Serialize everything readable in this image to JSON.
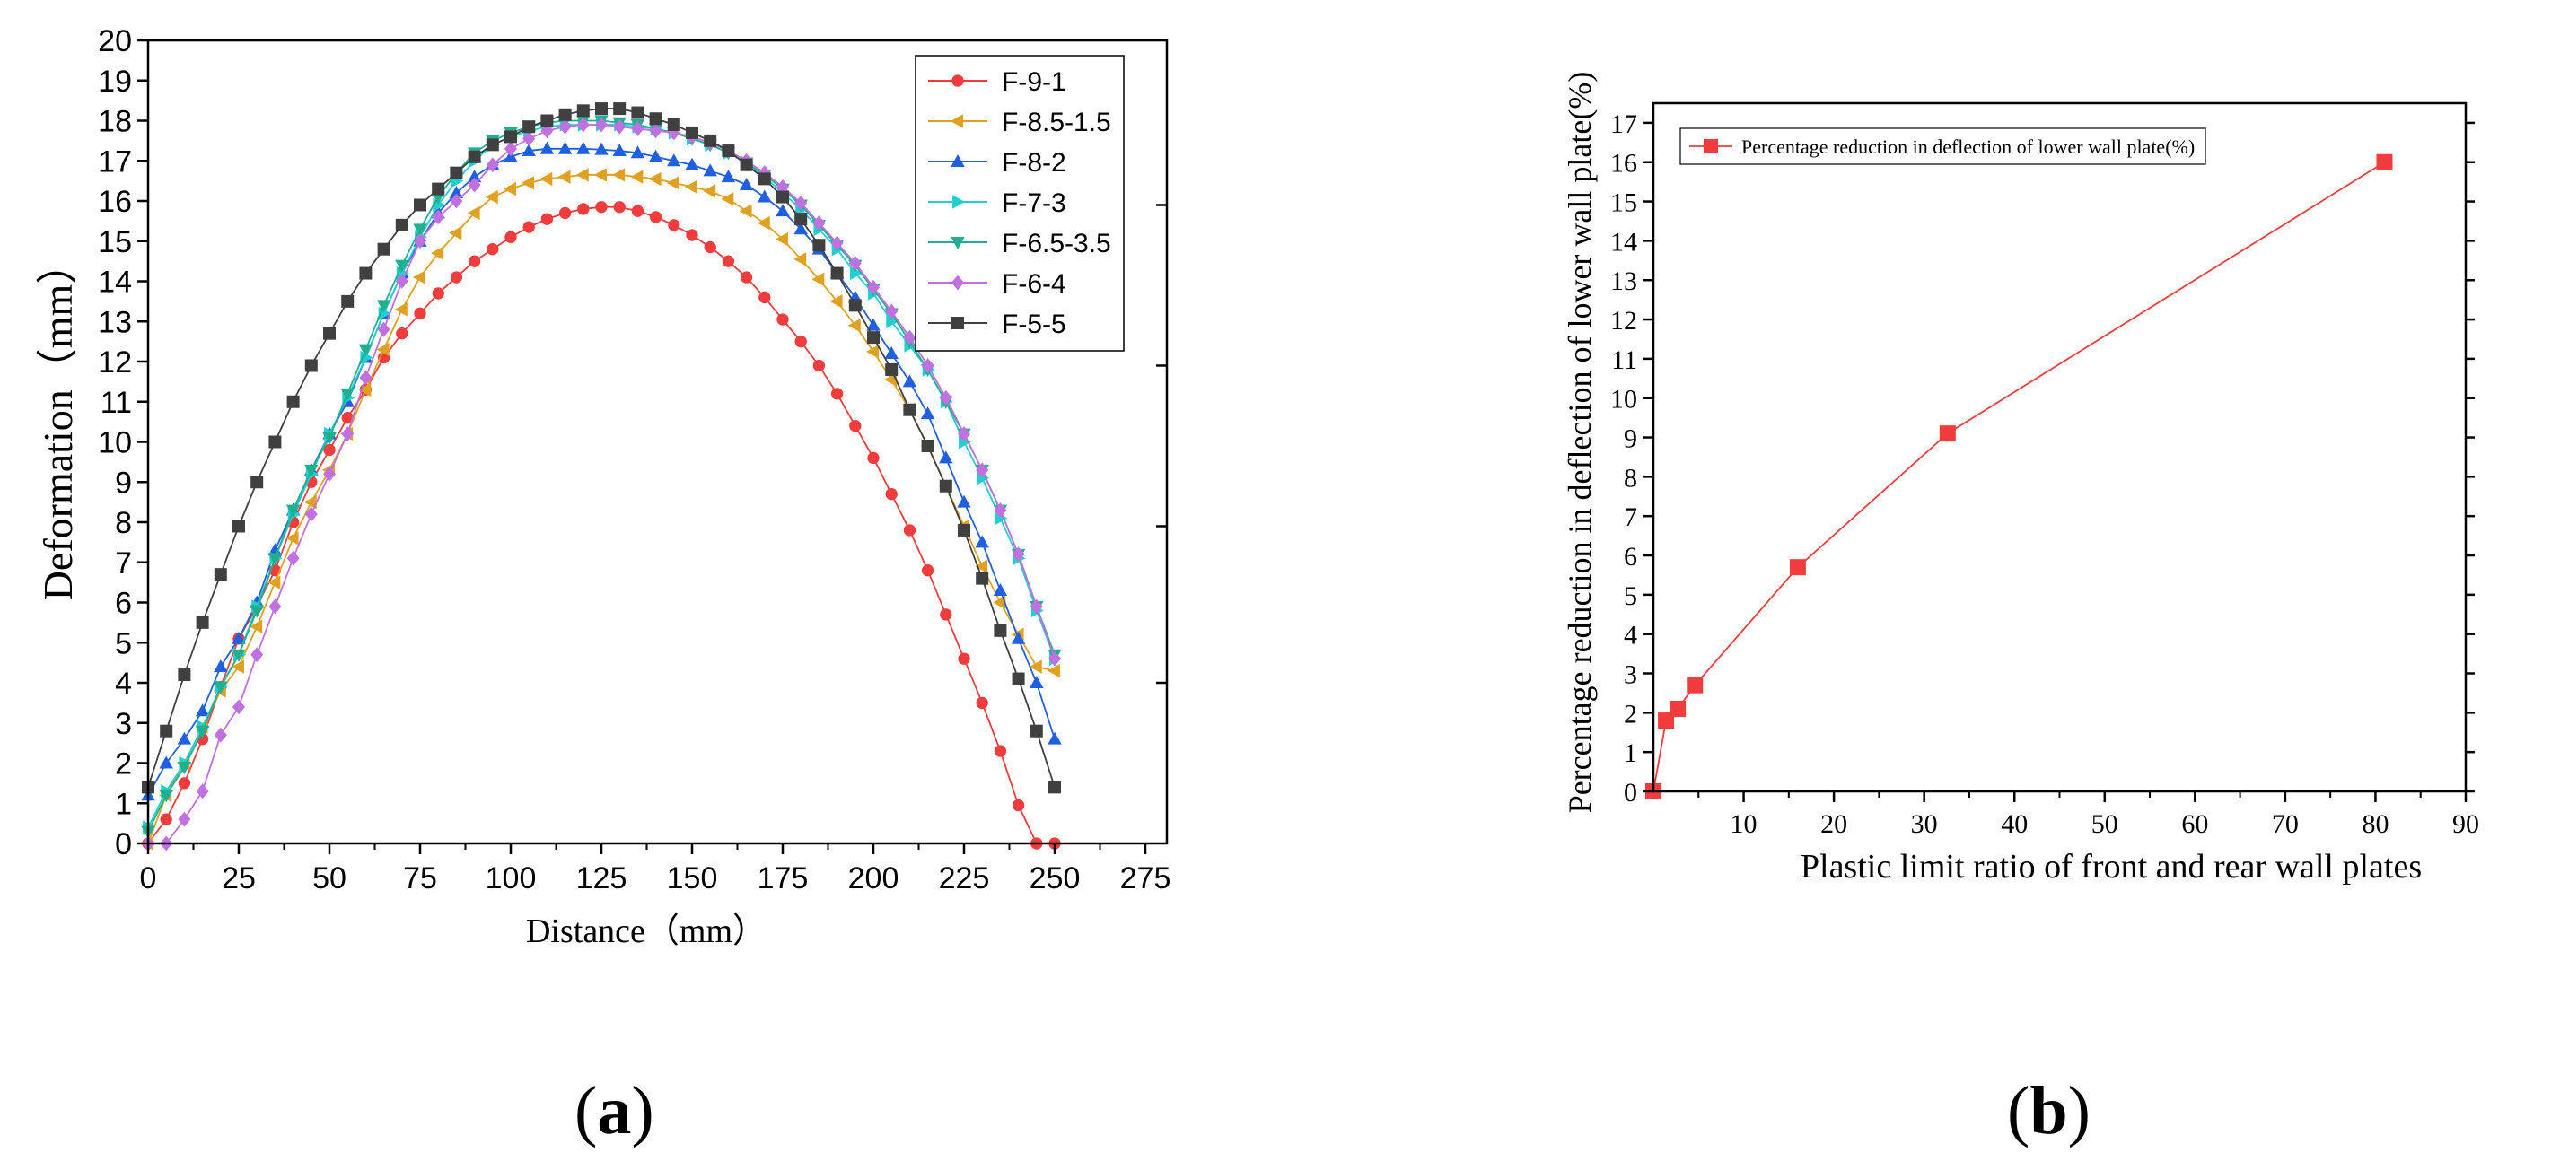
{
  "chart_data": [
    {
      "id": "a",
      "type": "line",
      "xlabel": "Distance（mm）",
      "ylabel": "Deformation（mm）",
      "xlim": [
        0,
        275
      ],
      "ylim": [
        0,
        20
      ],
      "xticks": [
        0,
        25,
        50,
        75,
        100,
        125,
        150,
        175,
        200,
        225,
        250,
        275
      ],
      "yticks": [
        0,
        1,
        2,
        3,
        4,
        5,
        6,
        7,
        8,
        9,
        10,
        11,
        12,
        13,
        14,
        15,
        16,
        17,
        18,
        19,
        20
      ],
      "legend_position": "top-right",
      "series": [
        {
          "name": "F-9-1",
          "color": "#f03c3c",
          "marker": "circle",
          "x": [
            0,
            5,
            10,
            15,
            20,
            25,
            30,
            35,
            40,
            45,
            50,
            55,
            60,
            65,
            70,
            75,
            80,
            85,
            90,
            95,
            100,
            105,
            110,
            115,
            120,
            125,
            130,
            135,
            140,
            145,
            150,
            155,
            160,
            165,
            170,
            175,
            180,
            185,
            190,
            195,
            200,
            205,
            210,
            215,
            220,
            225,
            230,
            235,
            240,
            245,
            250
          ],
          "y": [
            0,
            0.6,
            1.5,
            2.6,
            3.9,
            5.1,
            5.9,
            6.8,
            8.0,
            9.0,
            9.8,
            10.6,
            11.3,
            12.1,
            12.7,
            13.2,
            13.7,
            14.1,
            14.5,
            14.8,
            15.1,
            15.35,
            15.55,
            15.7,
            15.8,
            15.85,
            15.85,
            15.75,
            15.6,
            15.4,
            15.15,
            14.85,
            14.5,
            14.1,
            13.6,
            13.05,
            12.5,
            11.9,
            11.2,
            10.4,
            9.6,
            8.7,
            7.8,
            6.8,
            5.7,
            4.6,
            3.5,
            2.3,
            0.95,
            0,
            0
          ]
        },
        {
          "name": "F-8.5-1.5",
          "color": "#e0a020",
          "marker": "triangle-left",
          "x": [
            0,
            5,
            10,
            15,
            20,
            25,
            30,
            35,
            40,
            45,
            50,
            55,
            60,
            65,
            70,
            75,
            80,
            85,
            90,
            95,
            100,
            105,
            110,
            115,
            120,
            125,
            130,
            135,
            140,
            145,
            150,
            155,
            160,
            165,
            170,
            175,
            180,
            185,
            190,
            195,
            200,
            205,
            210,
            215,
            220,
            225,
            230,
            235,
            240,
            245,
            250
          ],
          "y": [
            0,
            1.2,
            2.0,
            2.9,
            3.8,
            4.4,
            5.4,
            6.5,
            7.6,
            8.5,
            9.3,
            10.2,
            11.3,
            12.3,
            13.3,
            14.1,
            14.7,
            15.2,
            15.7,
            16.1,
            16.3,
            16.45,
            16.55,
            16.6,
            16.65,
            16.65,
            16.65,
            16.6,
            16.55,
            16.45,
            16.35,
            16.25,
            16.05,
            15.75,
            15.45,
            15.05,
            14.55,
            14.05,
            13.5,
            12.9,
            12.25,
            11.55,
            10.8,
            9.9,
            8.9,
            7.9,
            6.9,
            6.0,
            5.2,
            4.4,
            4.3
          ]
        },
        {
          "name": "F-8-2",
          "color": "#2060e0",
          "marker": "triangle-up",
          "x": [
            0,
            5,
            10,
            15,
            20,
            25,
            30,
            35,
            40,
            45,
            50,
            55,
            60,
            65,
            70,
            75,
            80,
            85,
            90,
            95,
            100,
            105,
            110,
            115,
            120,
            125,
            130,
            135,
            140,
            145,
            150,
            155,
            160,
            165,
            170,
            175,
            180,
            185,
            190,
            195,
            200,
            205,
            210,
            215,
            220,
            225,
            230,
            235,
            240,
            245,
            250
          ],
          "y": [
            1.2,
            2.0,
            2.6,
            3.3,
            4.4,
            5.1,
            6.0,
            7.3,
            8.3,
            9.3,
            10.2,
            11.0,
            12.1,
            13.2,
            14.2,
            15.0,
            15.7,
            16.2,
            16.6,
            16.9,
            17.1,
            17.25,
            17.3,
            17.3,
            17.3,
            17.28,
            17.25,
            17.2,
            17.1,
            17.0,
            16.9,
            16.75,
            16.6,
            16.4,
            16.1,
            15.75,
            15.3,
            14.8,
            14.2,
            13.6,
            12.9,
            12.2,
            11.5,
            10.7,
            9.6,
            8.5,
            7.5,
            6.3,
            5.1,
            4.0,
            2.6
          ]
        },
        {
          "name": "F-7-3",
          "color": "#20d0d0",
          "marker": "triangle-right",
          "x": [
            0,
            5,
            10,
            15,
            20,
            25,
            30,
            35,
            40,
            45,
            50,
            55,
            60,
            65,
            70,
            75,
            80,
            85,
            90,
            95,
            100,
            105,
            110,
            115,
            120,
            125,
            130,
            135,
            140,
            145,
            150,
            155,
            160,
            165,
            170,
            175,
            180,
            185,
            190,
            195,
            200,
            205,
            210,
            215,
            220,
            225,
            230,
            235,
            240,
            245,
            250
          ],
          "y": [
            0.4,
            1.3,
            2.0,
            2.9,
            3.9,
            4.7,
            5.9,
            7.1,
            8.2,
            9.2,
            10.2,
            11.1,
            12.1,
            13.2,
            14.2,
            15.1,
            15.9,
            16.5,
            17.0,
            17.4,
            17.6,
            17.75,
            17.85,
            17.9,
            17.9,
            17.9,
            17.9,
            17.85,
            17.8,
            17.7,
            17.55,
            17.4,
            17.2,
            16.95,
            16.6,
            16.2,
            15.8,
            15.3,
            14.8,
            14.2,
            13.7,
            13.0,
            12.4,
            11.8,
            11.0,
            10.0,
            9.1,
            8.1,
            7.1,
            5.8,
            4.6
          ]
        },
        {
          "name": "F-6.5-3.5",
          "color": "#20b090",
          "marker": "triangle-down",
          "x": [
            0,
            5,
            10,
            15,
            20,
            25,
            30,
            35,
            40,
            45,
            50,
            55,
            60,
            65,
            70,
            75,
            80,
            85,
            90,
            95,
            100,
            105,
            110,
            115,
            120,
            125,
            130,
            135,
            140,
            145,
            150,
            155,
            160,
            165,
            170,
            175,
            180,
            185,
            190,
            195,
            200,
            205,
            210,
            215,
            220,
            225,
            230,
            235,
            240,
            245,
            250
          ],
          "y": [
            0.3,
            1.2,
            1.9,
            2.8,
            3.9,
            4.7,
            5.8,
            7.1,
            8.3,
            9.3,
            10.1,
            11.2,
            12.3,
            13.4,
            14.4,
            15.3,
            16.1,
            16.7,
            17.2,
            17.5,
            17.7,
            17.85,
            17.95,
            18.0,
            18.0,
            18.0,
            17.95,
            17.9,
            17.8,
            17.7,
            17.55,
            17.4,
            17.2,
            16.95,
            16.65,
            16.3,
            15.9,
            15.4,
            14.9,
            14.4,
            13.8,
            13.2,
            12.5,
            11.8,
            11.0,
            10.2,
            9.3,
            8.3,
            7.2,
            5.9,
            4.7
          ]
        },
        {
          "name": "F-6-4",
          "color": "#c070e0",
          "marker": "diamond",
          "x": [
            0,
            5,
            10,
            15,
            20,
            25,
            30,
            35,
            40,
            45,
            50,
            55,
            60,
            65,
            70,
            75,
            80,
            85,
            90,
            95,
            100,
            105,
            110,
            115,
            120,
            125,
            130,
            135,
            140,
            145,
            150,
            155,
            160,
            165,
            170,
            175,
            180,
            185,
            190,
            195,
            200,
            205,
            210,
            215,
            220,
            225,
            230,
            235,
            240,
            245,
            250
          ],
          "y": [
            0,
            0,
            0.6,
            1.3,
            2.7,
            3.4,
            4.7,
            5.9,
            7.1,
            8.2,
            9.2,
            10.2,
            11.6,
            12.8,
            14.0,
            15.0,
            15.6,
            16.0,
            16.4,
            16.9,
            17.3,
            17.55,
            17.75,
            17.85,
            17.9,
            17.9,
            17.85,
            17.8,
            17.75,
            17.7,
            17.6,
            17.45,
            17.25,
            17.0,
            16.7,
            16.35,
            15.95,
            15.45,
            14.95,
            14.45,
            13.85,
            13.25,
            12.6,
            11.9,
            11.1,
            10.2,
            9.3,
            8.3,
            7.2,
            5.9,
            4.6
          ]
        },
        {
          "name": "F-5-5",
          "color": "#404040",
          "marker": "square",
          "x": [
            0,
            5,
            10,
            15,
            20,
            25,
            30,
            35,
            40,
            45,
            50,
            55,
            60,
            65,
            70,
            75,
            80,
            85,
            90,
            95,
            100,
            105,
            110,
            115,
            120,
            125,
            130,
            135,
            140,
            145,
            150,
            155,
            160,
            165,
            170,
            175,
            180,
            185,
            190,
            195,
            200,
            205,
            210,
            215,
            220,
            225,
            230,
            235,
            240,
            245,
            250
          ],
          "y": [
            1.4,
            2.8,
            4.2,
            5.5,
            6.7,
            7.9,
            9.0,
            10.0,
            11.0,
            11.9,
            12.7,
            13.5,
            14.2,
            14.8,
            15.4,
            15.9,
            16.3,
            16.7,
            17.1,
            17.4,
            17.6,
            17.85,
            18.0,
            18.15,
            18.25,
            18.3,
            18.3,
            18.2,
            18.05,
            17.9,
            17.7,
            17.5,
            17.25,
            16.9,
            16.55,
            16.1,
            15.55,
            14.9,
            14.2,
            13.4,
            12.6,
            11.8,
            10.8,
            9.9,
            8.9,
            7.8,
            6.6,
            5.3,
            4.1,
            2.8,
            1.4
          ]
        }
      ]
    },
    {
      "id": "b",
      "type": "line",
      "xlabel": "Plastic limit ratio of front and rear wall plates",
      "ylabel": "Percentage reduction in deflection of lower wall plate(%)",
      "xlim": [
        0,
        90
      ],
      "ylim": [
        0,
        17.5
      ],
      "xticks": [
        10,
        20,
        30,
        40,
        50,
        60,
        70,
        80,
        90
      ],
      "yticks": [
        0,
        1,
        2,
        3,
        4,
        5,
        6,
        7,
        8,
        9,
        10,
        11,
        12,
        13,
        14,
        15,
        16,
        17
      ],
      "legend_position": "top-left",
      "series": [
        {
          "name": "Percentage reduction in deflection of lower wall plate(%)",
          "color": "#f03c3c",
          "marker": "square",
          "x": [
            0,
            1.4,
            2.7,
            4.6,
            16,
            32.6,
            81
          ],
          "y": [
            0,
            1.8,
            2.1,
            2.7,
            5.7,
            9.1,
            16.0
          ]
        }
      ]
    }
  ],
  "panel_labels": {
    "a": "a",
    "b": "b"
  }
}
